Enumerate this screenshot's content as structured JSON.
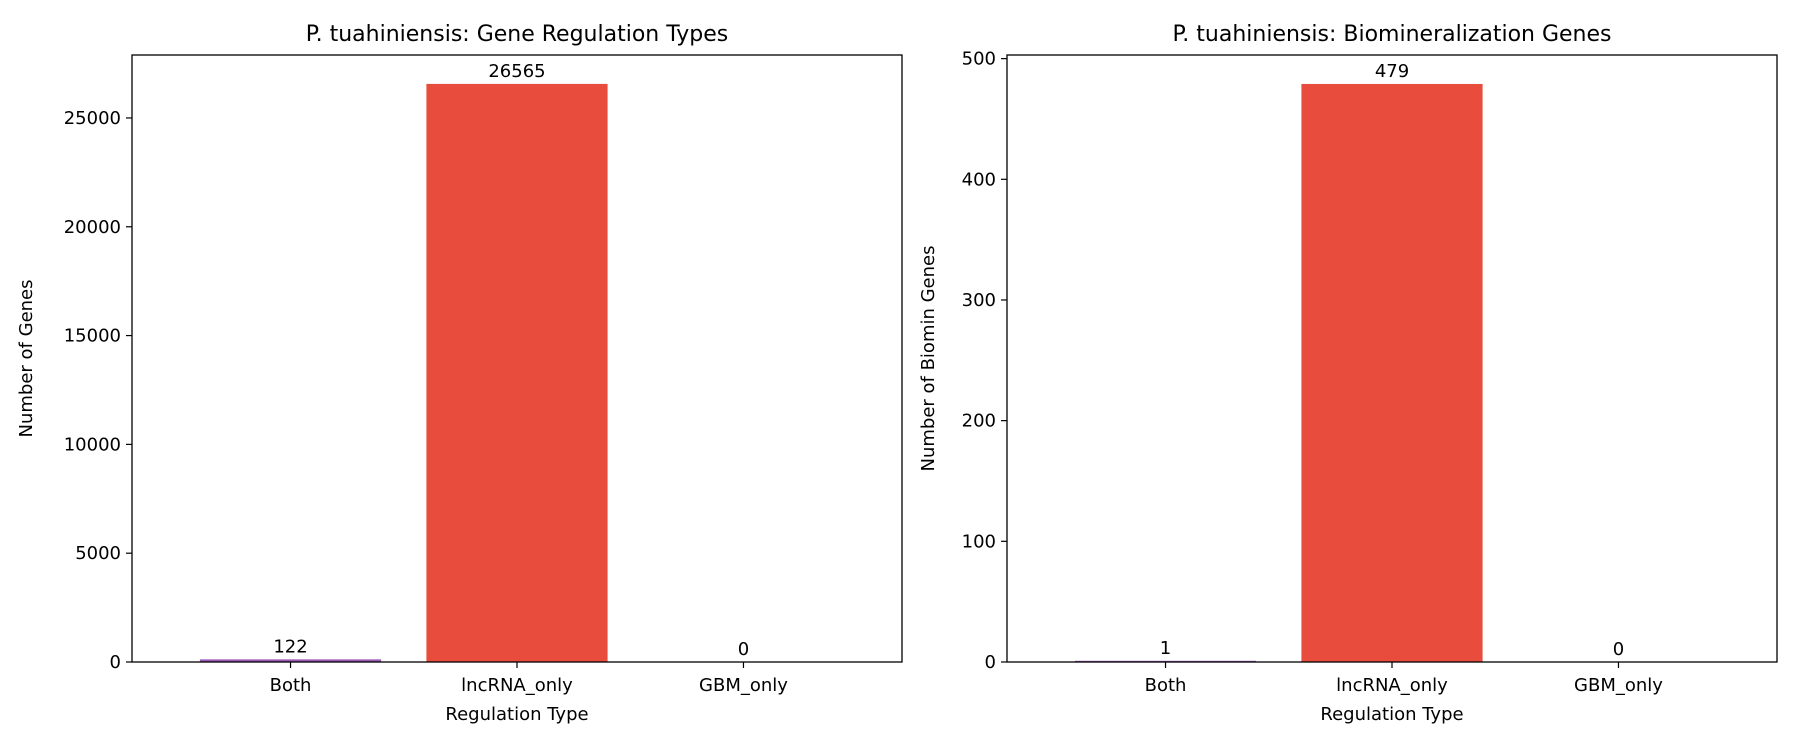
{
  "chart_data": [
    {
      "type": "bar",
      "title": "P. tuahiniensis: Gene Regulation Types",
      "xlabel": "Regulation Type",
      "ylabel": "Number of Genes",
      "categories": [
        "Both",
        "lncRNA_only",
        "GBM_only"
      ],
      "values": [
        122,
        26565,
        0
      ],
      "colors": [
        "#9b59b6",
        "#e74c3c",
        "#3498db"
      ],
      "ylim": [
        0,
        27893
      ],
      "yticks": [
        0,
        5000,
        10000,
        15000,
        20000,
        25000
      ],
      "grid": false,
      "legend": "none"
    },
    {
      "type": "bar",
      "title": "P. tuahiniensis: Biomineralization Genes",
      "xlabel": "Regulation Type",
      "ylabel": "Number of Biomin Genes",
      "categories": [
        "Both",
        "lncRNA_only",
        "GBM_only"
      ],
      "values": [
        1,
        479,
        0
      ],
      "colors": [
        "#9b59b6",
        "#e74c3c",
        "#3498db"
      ],
      "ylim": [
        0,
        503
      ],
      "yticks": [
        0,
        100,
        200,
        300,
        400,
        500
      ],
      "grid": false,
      "legend": "none"
    }
  ]
}
